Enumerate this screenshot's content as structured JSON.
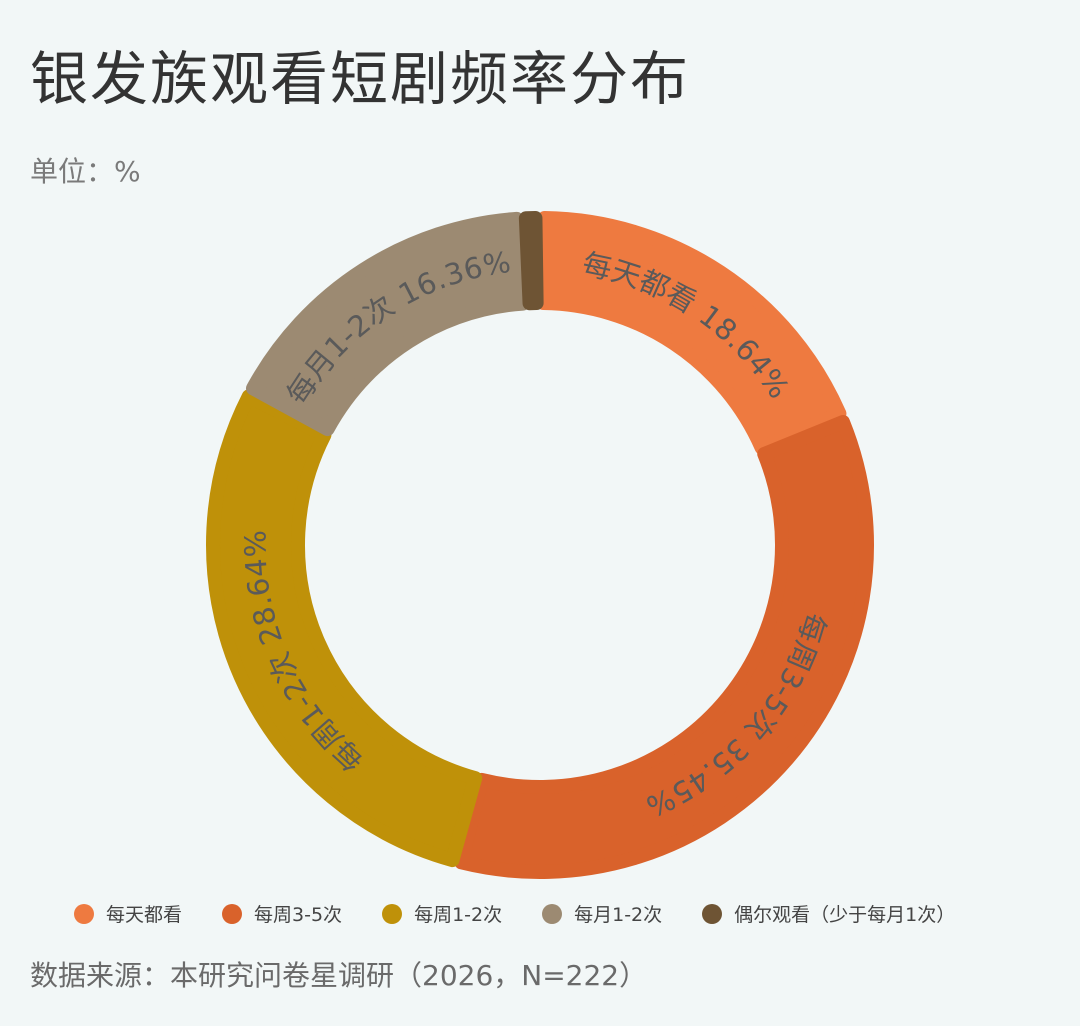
{
  "title": "银发族观看短剧频率分布",
  "unit": "单位：%",
  "source": "数据来源：本研究问卷星调研（2026，N=222）",
  "chart_data": {
    "type": "pie",
    "variant": "donut",
    "title": "银发族观看短剧频率分布",
    "unit": "%",
    "legend_position": "bottom",
    "slices": [
      {
        "name": "每天都看",
        "legend": "每天都看",
        "label": "每天都看 18.64%",
        "value": 18.64,
        "color": "#ee7a40"
      },
      {
        "name": "每周3-5次",
        "legend": "每周3-5次",
        "label": "每周3-5次 35.45%",
        "value": 35.45,
        "color": "#d9622b"
      },
      {
        "name": "每周1-2次",
        "legend": "每周1-2次",
        "label": "每周1-2次 28.64%",
        "value": 28.64,
        "color": "#bf9109"
      },
      {
        "name": "每月1-2次",
        "legend": "每月1-2次",
        "label": "每月1-2次 16.36%",
        "value": 16.36,
        "color": "#9c8a72"
      },
      {
        "name": "偶尔观看（少于每月1次）",
        "legend": "偶尔观看（少于每月1次）",
        "label": "",
        "value": 0.91,
        "color": "#6e5434"
      }
    ]
  }
}
